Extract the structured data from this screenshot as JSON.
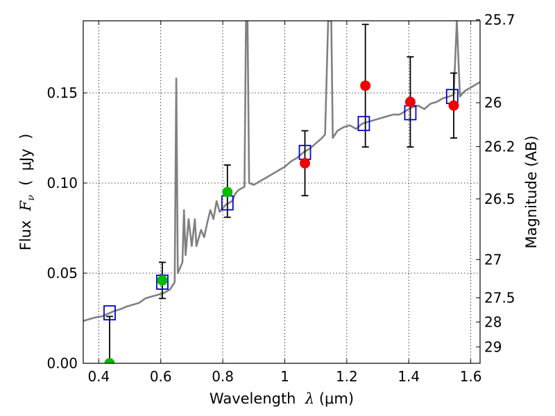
{
  "chart_data": {
    "type": "scatter",
    "title": "",
    "xlabel": {
      "prefix": "Wavelength  ",
      "symbol": "λ",
      "units": " (μm)"
    },
    "ylabel": {
      "prefix": "Flux  ",
      "symbol": "F",
      "subscript": "ν",
      "units": "  (  μJy  )"
    },
    "ylabel_right": "Magnitude (AB)",
    "xlim": [
      0.35,
      1.63
    ],
    "ylim": [
      0.0,
      0.19
    ],
    "x_ticks": [
      0.4,
      0.6,
      0.8,
      1.0,
      1.2,
      1.4,
      1.6
    ],
    "x_tick_labels": [
      "0.4",
      "0.6",
      "0.8",
      "1",
      "1.2",
      "1.4",
      "1.6"
    ],
    "y_ticks": [
      0.0,
      0.05,
      0.1,
      0.15
    ],
    "y_tick_labels": [
      "0.00",
      "0.05",
      "0.10",
      "0.15"
    ],
    "right_ticks": [
      25.7,
      26,
      26.2,
      26.5,
      27,
      27.5,
      28,
      29
    ],
    "right_tick_labels": [
      "25.7",
      "26",
      "26.2",
      "26.5",
      "27",
      "27.5",
      "28",
      "29"
    ],
    "grid": true,
    "colors": {
      "spectrum": "#808080",
      "model_box": "#0000cc",
      "obs_green": "#00bb00",
      "obs_red": "#ee0000",
      "errorbar": "#000000"
    },
    "series": [
      {
        "kind": "spectrum",
        "points": [
          [
            0.35,
            0.0235
          ],
          [
            0.37,
            0.0245
          ],
          [
            0.39,
            0.0255
          ],
          [
            0.41,
            0.026
          ],
          [
            0.43,
            0.0275
          ],
          [
            0.45,
            0.029
          ],
          [
            0.47,
            0.03
          ],
          [
            0.49,
            0.0315
          ],
          [
            0.51,
            0.0325
          ],
          [
            0.53,
            0.0335
          ],
          [
            0.55,
            0.036
          ],
          [
            0.57,
            0.037
          ],
          [
            0.59,
            0.038
          ],
          [
            0.61,
            0.039
          ],
          [
            0.63,
            0.041
          ],
          [
            0.645,
            0.045
          ],
          [
            0.65,
            0.158
          ],
          [
            0.655,
            0.05
          ],
          [
            0.66,
            0.052
          ],
          [
            0.67,
            0.056
          ],
          [
            0.675,
            0.085
          ],
          [
            0.68,
            0.06
          ],
          [
            0.69,
            0.08
          ],
          [
            0.7,
            0.065
          ],
          [
            0.71,
            0.08
          ],
          [
            0.715,
            0.065
          ],
          [
            0.73,
            0.074
          ],
          [
            0.74,
            0.07
          ],
          [
            0.75,
            0.078
          ],
          [
            0.76,
            0.085
          ],
          [
            0.77,
            0.08
          ],
          [
            0.78,
            0.09
          ],
          [
            0.79,
            0.084
          ],
          [
            0.8,
            0.086
          ],
          [
            0.81,
            0.088
          ],
          [
            0.83,
            0.09
          ],
          [
            0.84,
            0.094
          ],
          [
            0.85,
            0.096
          ],
          [
            0.86,
            0.097
          ],
          [
            0.87,
            0.098
          ],
          [
            0.875,
            0.19
          ],
          [
            0.88,
            0.19
          ],
          [
            0.885,
            0.1
          ],
          [
            0.9,
            0.099
          ],
          [
            0.92,
            0.101
          ],
          [
            0.94,
            0.103
          ],
          [
            0.96,
            0.105
          ],
          [
            0.98,
            0.107
          ],
          [
            1.0,
            0.109
          ],
          [
            1.02,
            0.112
          ],
          [
            1.04,
            0.114
          ],
          [
            1.06,
            0.117
          ],
          [
            1.08,
            0.119
          ],
          [
            1.1,
            0.122
          ],
          [
            1.12,
            0.125
          ],
          [
            1.13,
            0.127
          ],
          [
            1.14,
            0.19
          ],
          [
            1.15,
            0.19
          ],
          [
            1.155,
            0.125
          ],
          [
            1.17,
            0.129
          ],
          [
            1.19,
            0.131
          ],
          [
            1.21,
            0.132
          ],
          [
            1.23,
            0.13
          ],
          [
            1.25,
            0.133
          ],
          [
            1.27,
            0.134
          ],
          [
            1.29,
            0.135
          ],
          [
            1.31,
            0.136
          ],
          [
            1.33,
            0.137
          ],
          [
            1.35,
            0.138
          ],
          [
            1.37,
            0.138
          ],
          [
            1.39,
            0.14
          ],
          [
            1.41,
            0.142
          ],
          [
            1.43,
            0.143
          ],
          [
            1.45,
            0.141
          ],
          [
            1.47,
            0.144
          ],
          [
            1.49,
            0.145
          ],
          [
            1.51,
            0.147
          ],
          [
            1.53,
            0.148
          ],
          [
            1.545,
            0.149
          ],
          [
            1.555,
            0.19
          ],
          [
            1.565,
            0.148
          ],
          [
            1.58,
            0.151
          ],
          [
            1.6,
            0.153
          ],
          [
            1.62,
            0.155
          ],
          [
            1.63,
            0.156
          ]
        ]
      },
      {
        "kind": "model_box",
        "points": [
          [
            0.435,
            0.028
          ],
          [
            0.605,
            0.045
          ],
          [
            0.815,
            0.089
          ],
          [
            1.065,
            0.117
          ],
          [
            1.255,
            0.133
          ],
          [
            1.405,
            0.139
          ],
          [
            1.54,
            0.148
          ]
        ]
      },
      {
        "kind": "observed",
        "points": [
          {
            "x": 0.435,
            "y": 0.0,
            "err_low": 0.0,
            "err_high": 0.026,
            "color": "green"
          },
          {
            "x": 0.605,
            "y": 0.046,
            "err_low": 0.036,
            "err_high": 0.056,
            "color": "green"
          },
          {
            "x": 0.815,
            "y": 0.095,
            "err_low": 0.081,
            "err_high": 0.11,
            "color": "green"
          },
          {
            "x": 1.065,
            "y": 0.111,
            "err_low": 0.093,
            "err_high": 0.129,
            "color": "red"
          },
          {
            "x": 1.26,
            "y": 0.154,
            "err_low": 0.12,
            "err_high": 0.188,
            "color": "red"
          },
          {
            "x": 1.405,
            "y": 0.145,
            "err_low": 0.12,
            "err_high": 0.17,
            "color": "red"
          },
          {
            "x": 1.545,
            "y": 0.143,
            "err_low": 0.125,
            "err_high": 0.161,
            "color": "red"
          }
        ]
      }
    ]
  }
}
